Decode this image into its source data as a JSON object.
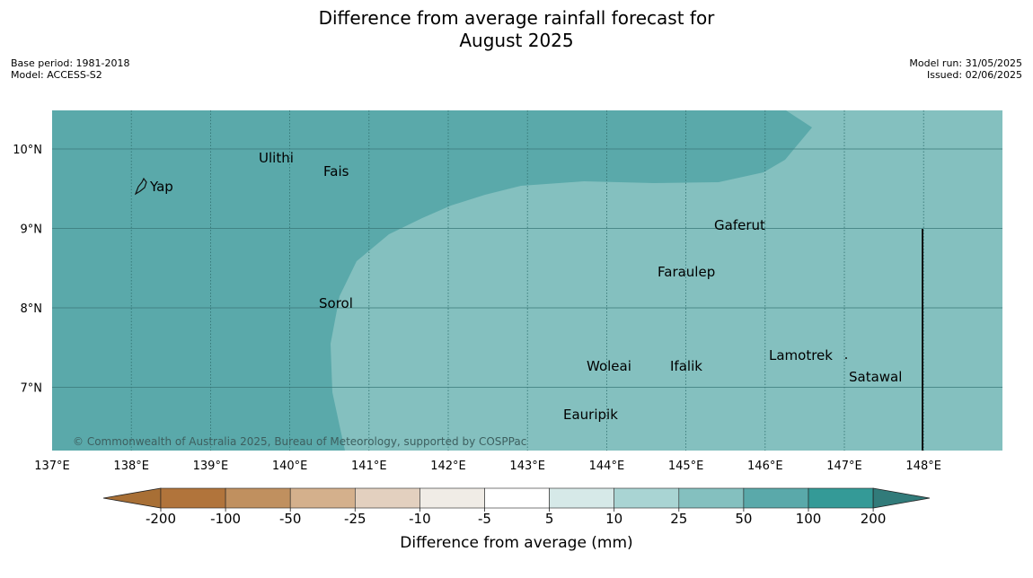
{
  "header": {
    "title_line1": "Difference from average rainfall forecast for",
    "title_line2": "August 2025",
    "base_period": "Base period: 1981-2018",
    "model": "Model: ACCESS-S2",
    "model_run": "Model run: 31/05/2025",
    "issued": "Issued: 02/06/2025"
  },
  "map": {
    "lon_ticks": [
      "137°E",
      "138°E",
      "139°E",
      "140°E",
      "141°E",
      "142°E",
      "143°E",
      "144°E",
      "145°E",
      "146°E",
      "147°E",
      "148°E"
    ],
    "lat_ticks": [
      "10°N",
      "9°N",
      "8°N",
      "7°N"
    ],
    "places": [
      {
        "name": "Yap"
      },
      {
        "name": "Ulithi"
      },
      {
        "name": "Fais"
      },
      {
        "name": "Gaferut"
      },
      {
        "name": "Faraulep"
      },
      {
        "name": "Sorol"
      },
      {
        "name": "Woleai"
      },
      {
        "name": "Ifalik"
      },
      {
        "name": "Lamotrek"
      },
      {
        "name": "Satawal"
      },
      {
        "name": "Eauripik"
      }
    ],
    "copyright": "© Commonwealth of Australia 2025, Bureau of Meteorology, supported by COSPPac",
    "colors": {
      "band_50_100": "#5aa9aa",
      "band_25_50": "#84c0bf"
    }
  },
  "colorbar": {
    "label": "Difference from average (mm)",
    "ticks": [
      "-200",
      "-100",
      "-50",
      "-25",
      "-10",
      "-5",
      "5",
      "10",
      "25",
      "50",
      "100",
      "200"
    ],
    "colors": [
      "#a86f35",
      "#b1743b",
      "#c0905f",
      "#d4b08c",
      "#e3d0bf",
      "#f0ece6",
      "#ffffff",
      "#d6e9e8",
      "#a9d4d3",
      "#84c0bf",
      "#5aa9aa",
      "#349a97",
      "#317b7a"
    ]
  }
}
